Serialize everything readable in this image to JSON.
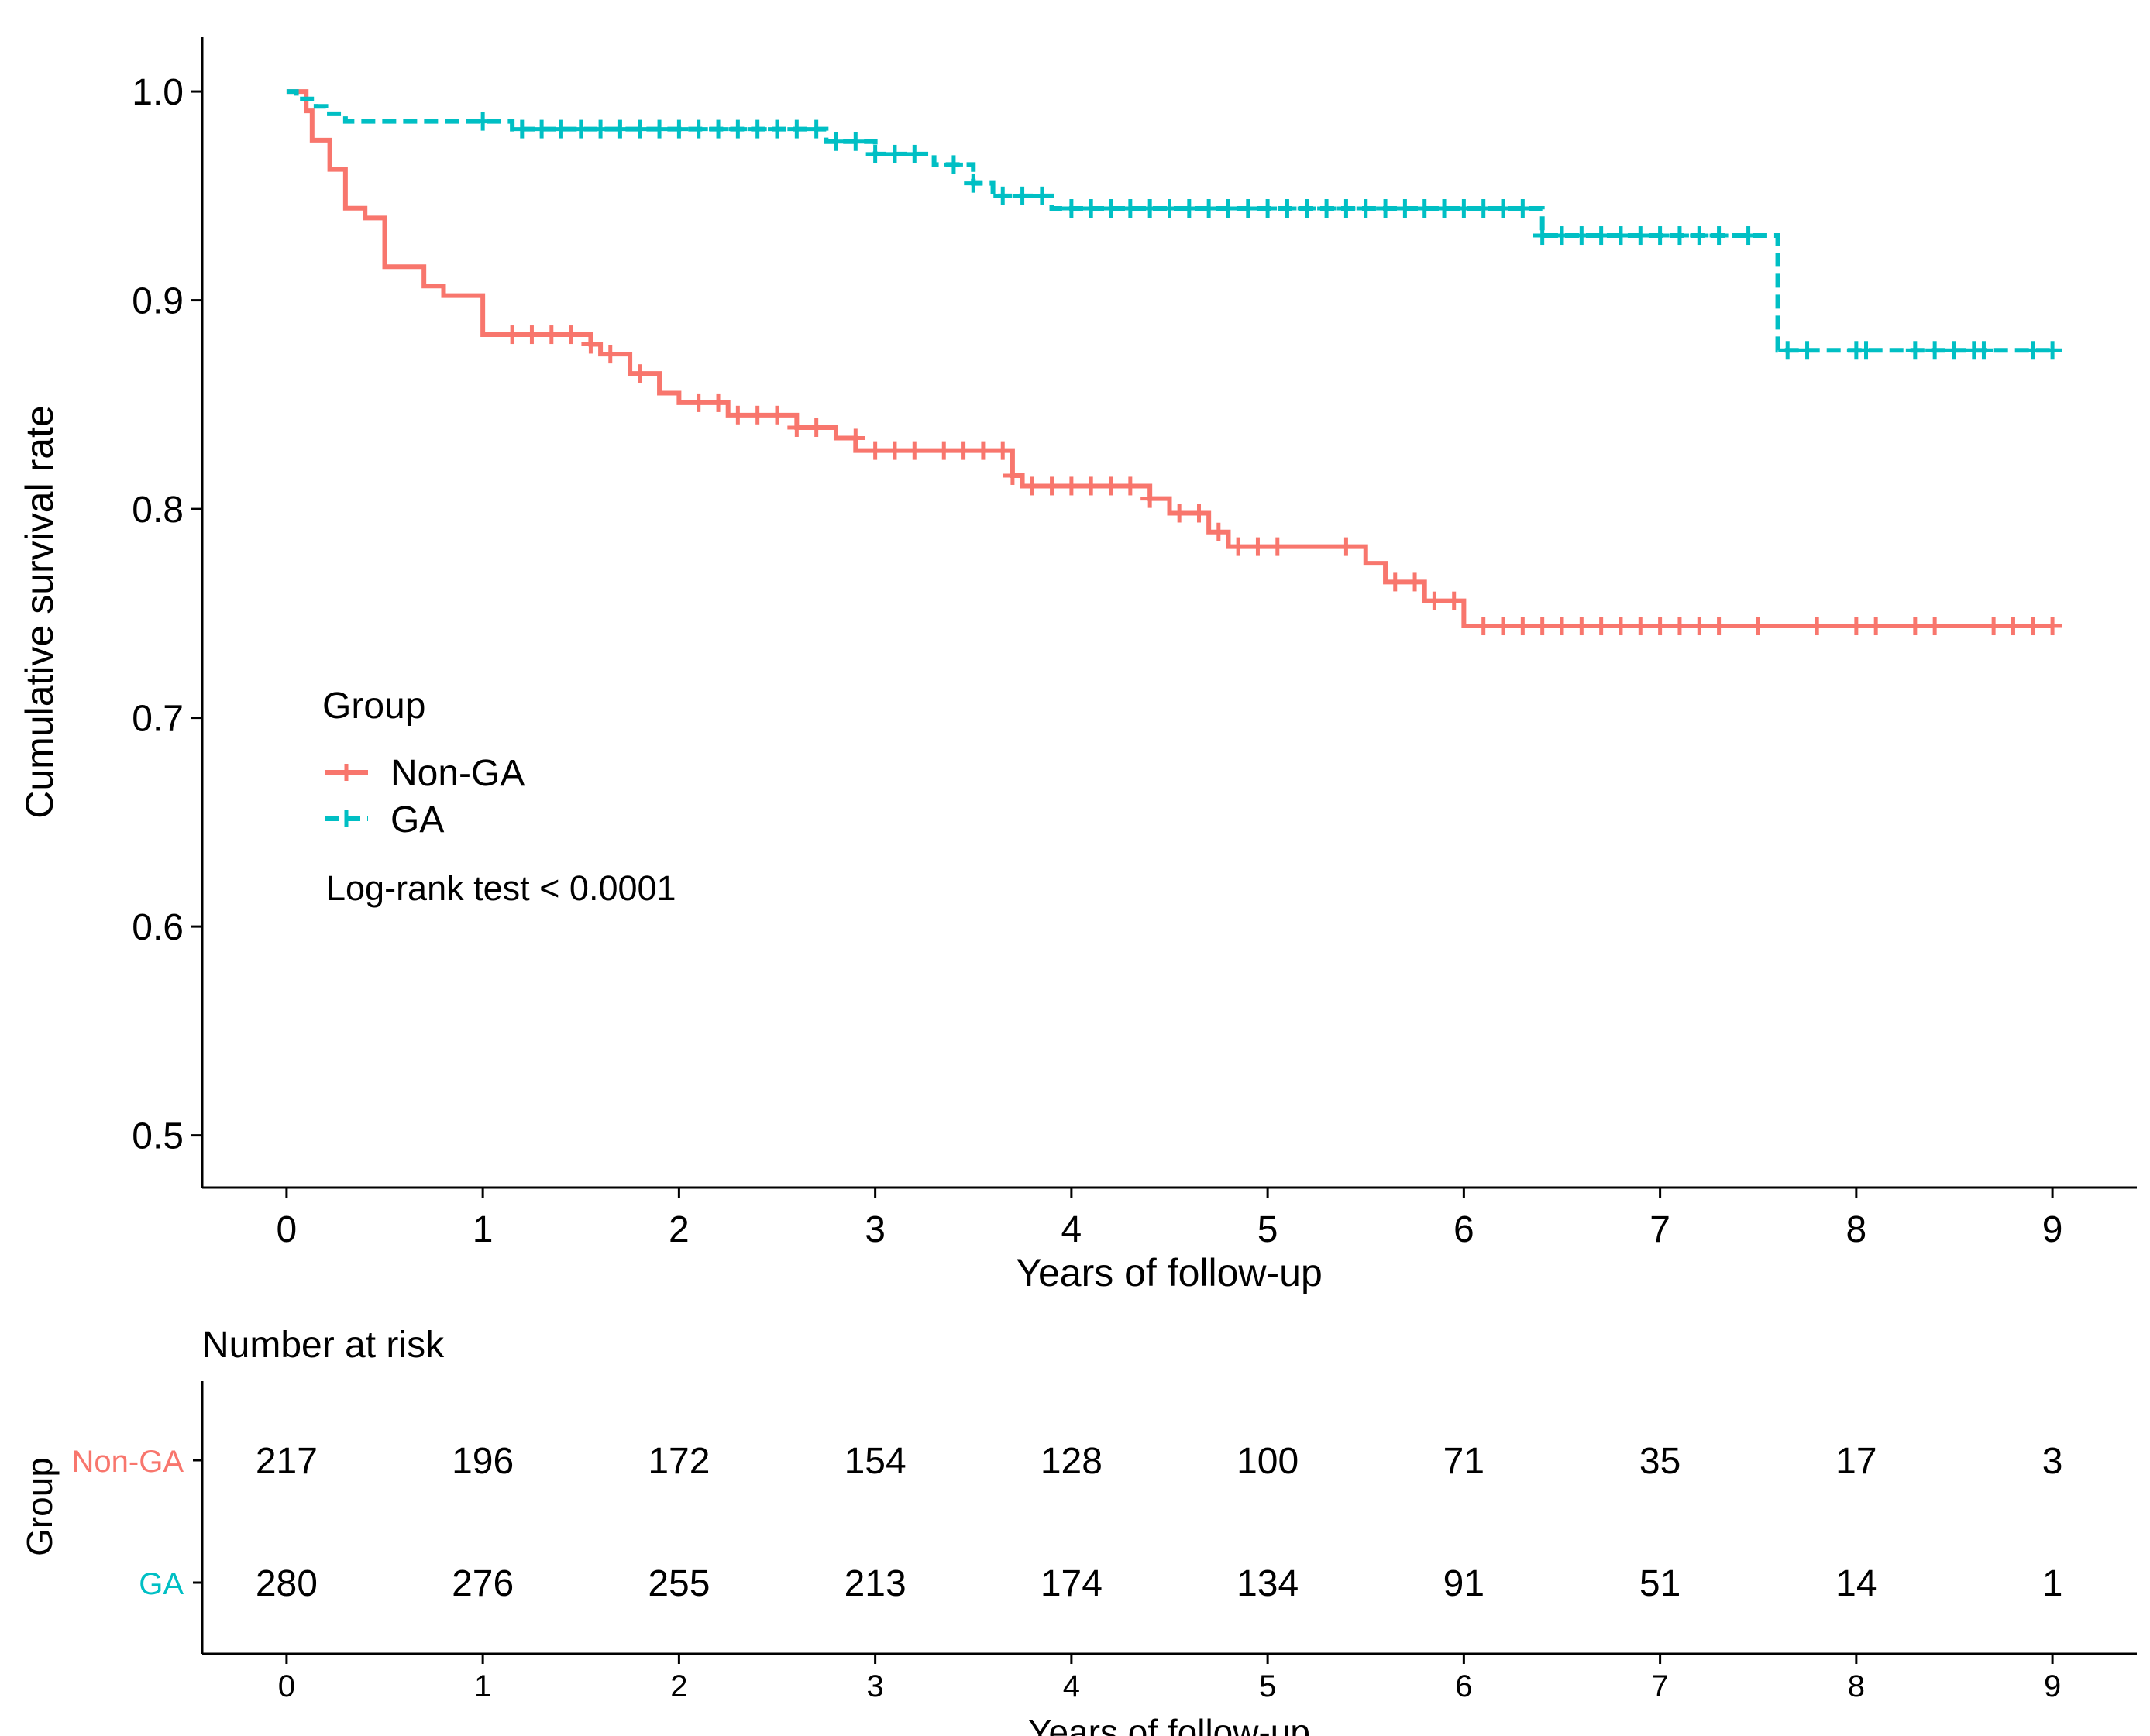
{
  "chart_data": [
    {
      "type": "line",
      "subtype": "kaplan-meier",
      "xlabel": "Years of follow-up",
      "ylabel": "Cumulative survival rate",
      "xlim": [
        -0.43,
        9.43
      ],
      "ylim": [
        0.475,
        1.026
      ],
      "x_ticks": [
        0,
        1,
        2,
        3,
        4,
        5,
        6,
        7,
        8,
        9
      ],
      "y_ticks": [
        0.5,
        0.6,
        0.7,
        0.8,
        0.9,
        1.0
      ],
      "y_tick_labels": [
        "0.5",
        "0.6",
        "0.7",
        "0.8",
        "0.9",
        "1.0"
      ],
      "legend": {
        "title": "Group",
        "position": "center-left",
        "items": [
          "Non-GA",
          "GA"
        ]
      },
      "annotation": "Log-rank test < 0.0001",
      "series": [
        {
          "name": "Non-GA",
          "color": "#f8766d",
          "dash": "solid",
          "steps": [
            [
              0,
              1.0
            ],
            [
              0.1,
              0.9907
            ],
            [
              0.13,
              0.9767
            ],
            [
              0.22,
              0.9627
            ],
            [
              0.3,
              0.9441
            ],
            [
              0.4,
              0.9394
            ],
            [
              0.5,
              0.9161
            ],
            [
              0.7,
              0.9068
            ],
            [
              0.8,
              0.9022
            ],
            [
              1.0,
              0.8835
            ],
            [
              1.55,
              0.8789
            ],
            [
              1.6,
              0.8742
            ],
            [
              1.75,
              0.8649
            ],
            [
              1.9,
              0.8555
            ],
            [
              2.0,
              0.8509
            ],
            [
              2.25,
              0.845
            ],
            [
              2.6,
              0.839
            ],
            [
              2.8,
              0.834
            ],
            [
              2.9,
              0.828
            ],
            [
              3.7,
              0.816
            ],
            [
              3.75,
              0.811
            ],
            [
              4.4,
              0.805
            ],
            [
              4.5,
              0.798
            ],
            [
              4.7,
              0.789
            ],
            [
              4.8,
              0.782
            ],
            [
              5.5,
              0.774
            ],
            [
              5.6,
              0.765
            ],
            [
              5.8,
              0.756
            ],
            [
              6.0,
              0.744
            ],
            [
              9.0,
              0.744
            ]
          ],
          "censors": [
            [
              1.15,
              0.8835
            ],
            [
              1.25,
              0.8835
            ],
            [
              1.35,
              0.8835
            ],
            [
              1.45,
              0.8835
            ],
            [
              1.55,
              0.8789
            ],
            [
              1.65,
              0.8742
            ],
            [
              1.8,
              0.8649
            ],
            [
              2.1,
              0.8509
            ],
            [
              2.2,
              0.8509
            ],
            [
              2.3,
              0.845
            ],
            [
              2.4,
              0.845
            ],
            [
              2.5,
              0.845
            ],
            [
              2.6,
              0.839
            ],
            [
              2.7,
              0.839
            ],
            [
              2.9,
              0.834
            ],
            [
              3.0,
              0.828
            ],
            [
              3.1,
              0.828
            ],
            [
              3.2,
              0.828
            ],
            [
              3.35,
              0.828
            ],
            [
              3.45,
              0.828
            ],
            [
              3.55,
              0.828
            ],
            [
              3.65,
              0.828
            ],
            [
              3.7,
              0.816
            ],
            [
              3.8,
              0.811
            ],
            [
              3.9,
              0.811
            ],
            [
              4.0,
              0.811
            ],
            [
              4.1,
              0.811
            ],
            [
              4.2,
              0.811
            ],
            [
              4.3,
              0.811
            ],
            [
              4.4,
              0.805
            ],
            [
              4.55,
              0.798
            ],
            [
              4.65,
              0.798
            ],
            [
              4.75,
              0.789
            ],
            [
              4.85,
              0.782
            ],
            [
              4.95,
              0.782
            ],
            [
              5.05,
              0.782
            ],
            [
              5.4,
              0.782
            ],
            [
              5.65,
              0.765
            ],
            [
              5.75,
              0.765
            ],
            [
              5.85,
              0.756
            ],
            [
              5.95,
              0.756
            ],
            [
              6.1,
              0.744
            ],
            [
              6.2,
              0.744
            ],
            [
              6.3,
              0.744
            ],
            [
              6.4,
              0.744
            ],
            [
              6.5,
              0.744
            ],
            [
              6.6,
              0.744
            ],
            [
              6.7,
              0.744
            ],
            [
              6.8,
              0.744
            ],
            [
              6.9,
              0.744
            ],
            [
              7.0,
              0.744
            ],
            [
              7.1,
              0.744
            ],
            [
              7.2,
              0.744
            ],
            [
              7.3,
              0.744
            ],
            [
              7.5,
              0.744
            ],
            [
              7.8,
              0.744
            ],
            [
              8.0,
              0.744
            ],
            [
              8.1,
              0.744
            ],
            [
              8.3,
              0.744
            ],
            [
              8.4,
              0.744
            ],
            [
              8.7,
              0.744
            ],
            [
              8.8,
              0.744
            ],
            [
              8.9,
              0.744
            ],
            [
              9.0,
              0.744
            ]
          ]
        },
        {
          "name": "GA",
          "color": "#00bfc4",
          "dash": "dashed",
          "steps": [
            [
              0,
              1.0
            ],
            [
              0.05,
              0.9964
            ],
            [
              0.15,
              0.9929
            ],
            [
              0.2,
              0.9893
            ],
            [
              0.3,
              0.9857
            ],
            [
              1.15,
              0.982
            ],
            [
              2.75,
              0.976
            ],
            [
              3.0,
              0.97
            ],
            [
              3.3,
              0.965
            ],
            [
              3.5,
              0.956
            ],
            [
              3.6,
              0.95
            ],
            [
              3.9,
              0.944
            ],
            [
              6.4,
              0.931
            ],
            [
              7.6,
              0.876
            ],
            [
              9.0,
              0.876
            ]
          ],
          "censors": [
            [
              1.0,
              0.9857
            ],
            [
              1.2,
              0.982
            ],
            [
              1.3,
              0.982
            ],
            [
              1.4,
              0.982
            ],
            [
              1.5,
              0.982
            ],
            [
              1.6,
              0.982
            ],
            [
              1.7,
              0.982
            ],
            [
              1.8,
              0.982
            ],
            [
              1.9,
              0.982
            ],
            [
              2.0,
              0.982
            ],
            [
              2.1,
              0.982
            ],
            [
              2.2,
              0.982
            ],
            [
              2.3,
              0.982
            ],
            [
              2.4,
              0.982
            ],
            [
              2.5,
              0.982
            ],
            [
              2.6,
              0.982
            ],
            [
              2.7,
              0.982
            ],
            [
              2.8,
              0.976
            ],
            [
              2.9,
              0.976
            ],
            [
              3.0,
              0.97
            ],
            [
              3.1,
              0.97
            ],
            [
              3.2,
              0.97
            ],
            [
              3.4,
              0.965
            ],
            [
              3.5,
              0.956
            ],
            [
              3.65,
              0.95
            ],
            [
              3.75,
              0.95
            ],
            [
              3.85,
              0.95
            ],
            [
              4.0,
              0.944
            ],
            [
              4.1,
              0.944
            ],
            [
              4.2,
              0.944
            ],
            [
              4.3,
              0.944
            ],
            [
              4.4,
              0.944
            ],
            [
              4.5,
              0.944
            ],
            [
              4.6,
              0.944
            ],
            [
              4.7,
              0.944
            ],
            [
              4.8,
              0.944
            ],
            [
              4.9,
              0.944
            ],
            [
              5.0,
              0.944
            ],
            [
              5.1,
              0.944
            ],
            [
              5.2,
              0.944
            ],
            [
              5.3,
              0.944
            ],
            [
              5.4,
              0.944
            ],
            [
              5.5,
              0.944
            ],
            [
              5.6,
              0.944
            ],
            [
              5.7,
              0.944
            ],
            [
              5.8,
              0.944
            ],
            [
              5.9,
              0.944
            ],
            [
              6.0,
              0.944
            ],
            [
              6.1,
              0.944
            ],
            [
              6.2,
              0.944
            ],
            [
              6.3,
              0.944
            ],
            [
              6.4,
              0.931
            ],
            [
              6.5,
              0.931
            ],
            [
              6.6,
              0.931
            ],
            [
              6.7,
              0.931
            ],
            [
              6.8,
              0.931
            ],
            [
              6.9,
              0.931
            ],
            [
              7.0,
              0.931
            ],
            [
              7.1,
              0.931
            ],
            [
              7.2,
              0.931
            ],
            [
              7.3,
              0.931
            ],
            [
              7.45,
              0.931
            ],
            [
              7.65,
              0.876
            ],
            [
              7.75,
              0.876
            ],
            [
              8.0,
              0.876
            ],
            [
              8.05,
              0.876
            ],
            [
              8.3,
              0.876
            ],
            [
              8.4,
              0.876
            ],
            [
              8.5,
              0.876
            ],
            [
              8.6,
              0.876
            ],
            [
              8.65,
              0.876
            ],
            [
              8.9,
              0.876
            ],
            [
              9.0,
              0.876
            ]
          ]
        }
      ]
    },
    {
      "type": "table",
      "title": "Number at risk",
      "xlabel": "Years of follow-up",
      "ylabel": "Group",
      "x_ticks": [
        0,
        1,
        2,
        3,
        4,
        5,
        6,
        7,
        8,
        9
      ],
      "rows": [
        {
          "name": "Non-GA",
          "color": "#f8766d",
          "values": [
            217,
            196,
            172,
            154,
            128,
            100,
            71,
            35,
            17,
            3
          ]
        },
        {
          "name": "GA",
          "color": "#00bfc4",
          "values": [
            280,
            276,
            255,
            213,
            174,
            134,
            91,
            51,
            14,
            1
          ]
        }
      ]
    }
  ]
}
